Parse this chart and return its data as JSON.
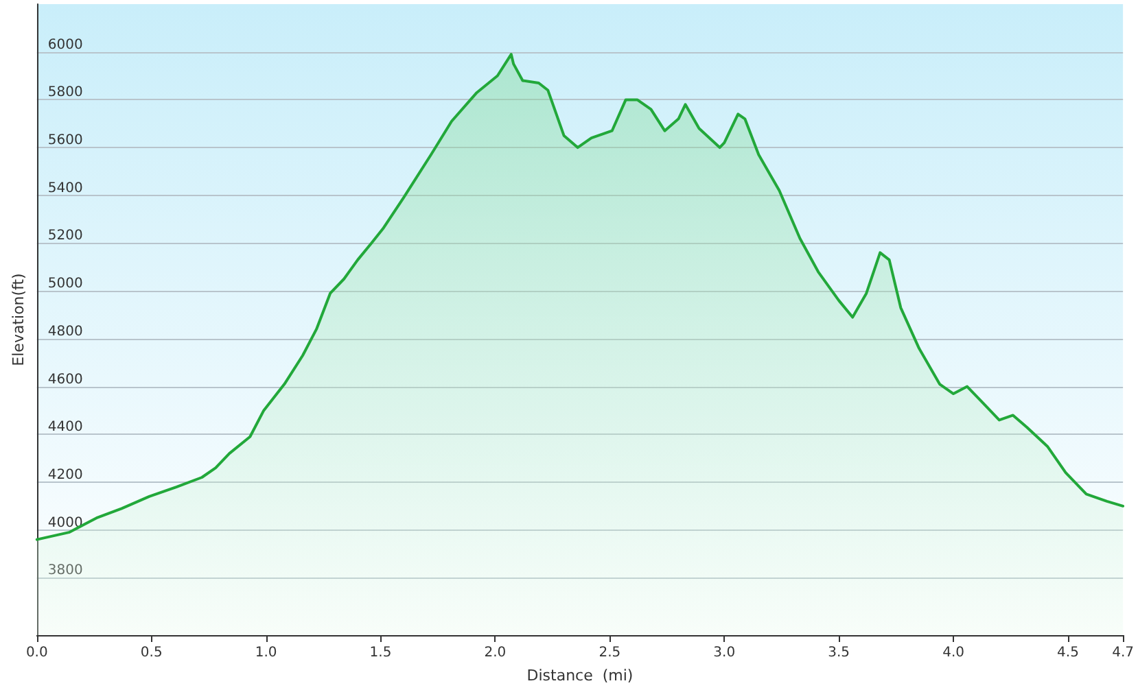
{
  "chart_data": {
    "type": "area",
    "xlabel": "Distance  (mi)",
    "ylabel": "Elevation(ft)",
    "x": [
      0,
      0.14,
      0.26,
      0.37,
      0.49,
      0.61,
      0.72,
      0.78,
      0.84,
      0.93,
      0.99,
      1.08,
      1.16,
      1.22,
      1.28,
      1.34,
      1.4,
      1.46,
      1.51,
      1.6,
      1.72,
      1.81,
      1.92,
      2.01,
      2.07,
      2.08,
      2.12,
      2.19,
      2.23,
      2.3,
      2.36,
      2.42,
      2.51,
      2.57,
      2.62,
      2.68,
      2.74,
      2.8,
      2.83,
      2.89,
      2.98,
      3.0,
      3.06,
      3.09,
      3.15,
      3.24,
      3.33,
      3.41,
      3.5,
      3.56,
      3.62,
      3.68,
      3.72,
      3.77,
      3.85,
      3.94,
      4.0,
      4.06,
      4.12,
      4.2,
      4.26,
      4.32,
      4.41,
      4.49,
      4.58,
      4.67,
      4.74
    ],
    "series": [
      {
        "color": "#22a83a",
        "values": [
          3960,
          3990,
          4050,
          4090,
          4140,
          4180,
          4220,
          4260,
          4320,
          4390,
          4500,
          4610,
          4730,
          4840,
          4990,
          5050,
          5130,
          5200,
          5260,
          5390,
          5570,
          5710,
          5830,
          5900,
          5990,
          5950,
          5880,
          5870,
          5840,
          5650,
          5600,
          5640,
          5670,
          5800,
          5800,
          5760,
          5670,
          5720,
          5780,
          5680,
          5600,
          5620,
          5740,
          5720,
          5570,
          5420,
          5220,
          5080,
          4960,
          4890,
          4990,
          5160,
          5130,
          4930,
          4760,
          4610,
          4570,
          4600,
          4540,
          4460,
          4480,
          4430,
          4350,
          4240,
          4150,
          4120,
          4100
        ]
      }
    ],
    "xlim": [
      0,
      4.74
    ],
    "xticks": [
      {
        "value": 0,
        "label": "0.0"
      },
      0.5,
      {
        "value": 1,
        "label": "1.0"
      },
      1.5,
      {
        "value": 2,
        "label": "2.0"
      },
      2.5,
      {
        "value": 3,
        "label": "3.0"
      },
      3.5,
      {
        "value": 4,
        "label": "4.0"
      },
      4.5,
      {
        "value": 4.74,
        "label": "4.7"
      }
    ],
    "ylim": [
      3560,
      6200
    ],
    "yticks": [
      3800,
      4000,
      4200,
      4400,
      4600,
      4800,
      5000,
      5200,
      5400,
      5600,
      5800,
      6000
    ],
    "grid": "y",
    "marker": "none",
    "line_style": "solid"
  }
}
